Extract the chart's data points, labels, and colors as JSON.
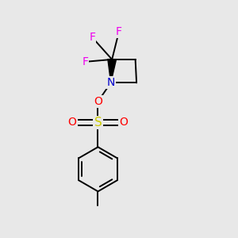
{
  "background_color": "#e8e8e8",
  "atom_colors": {
    "F": "#ee00ee",
    "N": "#0000cc",
    "O": "#ff0000",
    "S": "#cccc00",
    "C": "#000000"
  },
  "bond_color": "#000000",
  "bond_width": 1.4,
  "figsize": [
    3.0,
    3.0
  ],
  "dpi": 100,
  "xlim": [
    0,
    10
  ],
  "ylim": [
    0,
    10
  ]
}
